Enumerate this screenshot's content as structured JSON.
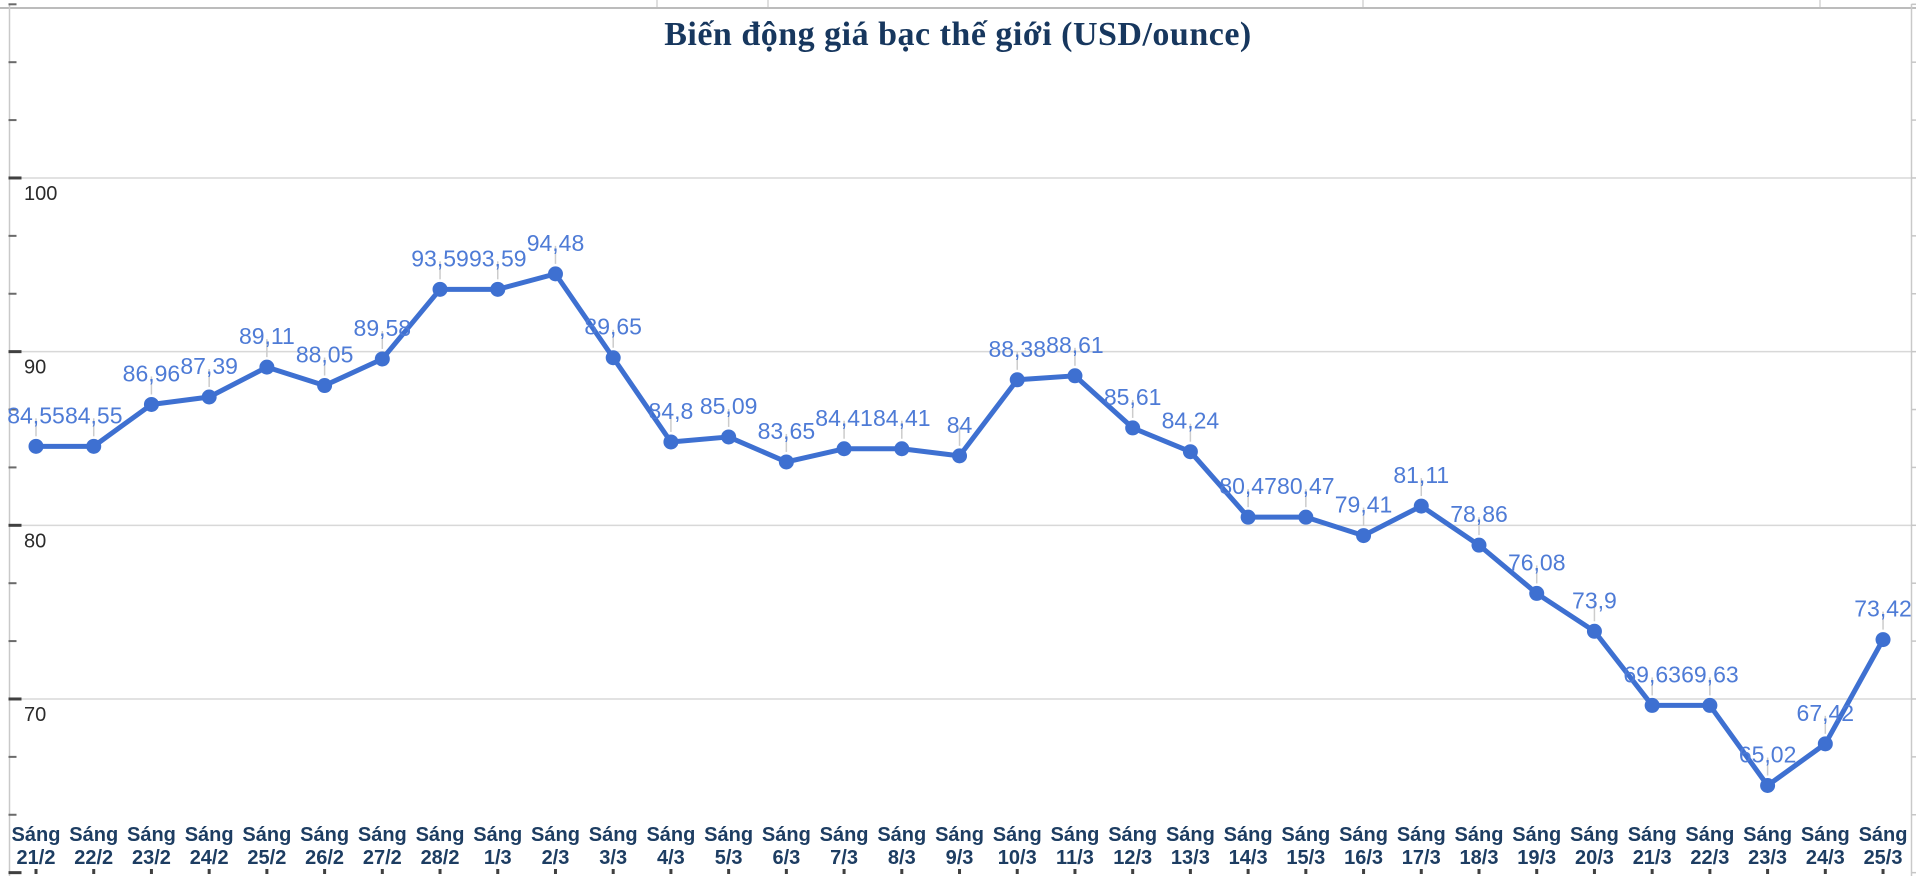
{
  "page": {
    "background": "#ffffff",
    "kind": "embedded spreadsheet line chart screenshot"
  },
  "chart_data": {
    "type": "line",
    "title": "Biến động giá bạc thế giới (USD/ounce)",
    "xlabel": "",
    "ylabel": "",
    "legend": "none",
    "grid": "horizontal-major-only",
    "decimal_separator": ",",
    "ylim": [
      60,
      110
    ],
    "y_ticks": [
      100,
      90,
      80,
      70
    ],
    "y_tick_labels": [
      "100",
      "90",
      "80",
      "70"
    ],
    "categories": [
      "Sáng 21/2",
      "Sáng 22/2",
      "Sáng 23/2",
      "Sáng 24/2",
      "Sáng 25/2",
      "Sáng 26/2",
      "Sáng 27/2",
      "Sáng 28/2",
      "Sáng 1/3",
      "Sáng 2/3",
      "Sáng 3/3",
      "Sáng 4/3",
      "Sáng 5/3",
      "Sáng 6/3",
      "Sáng 7/3",
      "Sáng 8/3",
      "Sáng 9/3",
      "Sáng 10/3",
      "Sáng 11/3",
      "Sáng 12/3",
      "Sáng 13/3",
      "Sáng 14/3",
      "Sáng 15/3",
      "Sáng 16/3",
      "Sáng 17/3",
      "Sáng 18/3",
      "Sáng 19/3",
      "Sáng 20/3",
      "Sáng 21/3",
      "Sáng 22/3",
      "Sáng 23/3",
      "Sáng 24/3",
      "Sáng 25/3"
    ],
    "values": [
      84.55,
      84.55,
      86.96,
      87.39,
      89.11,
      88.05,
      89.58,
      93.59,
      93.59,
      94.48,
      89.65,
      84.8,
      85.09,
      83.65,
      84.41,
      84.41,
      84,
      88.38,
      88.61,
      85.61,
      84.24,
      80.47,
      80.47,
      79.41,
      81.11,
      78.86,
      76.08,
      73.9,
      69.63,
      69.63,
      65.02,
      67.42,
      73.42
    ],
    "value_labels": [
      "84,55",
      "84,55",
      "86,96",
      "87,39",
      "89,11",
      "88,05",
      "89,58",
      "93,59",
      "93,59",
      "94,48",
      "89,65",
      "84,8",
      "85,09",
      "83,65",
      "84,41",
      "84,41",
      "84",
      "88,38",
      "88,61",
      "85,61",
      "84,24",
      "80,47",
      "80,47",
      "79,41",
      "81,11",
      "78,86",
      "76,08",
      "73,9",
      "69,63",
      "69,63",
      "65,02",
      "67,42",
      "73,42"
    ],
    "colors": {
      "line": "#3E70D1",
      "point": "#3E70D1",
      "data_label": "#4E7BD6",
      "category_label": "#1D3D62",
      "title": "#17375E",
      "gridline": "#D8D8D8",
      "axis_line": "#C9C9C9",
      "major_tick": "#404040",
      "minor_tick": "#6A6A6A",
      "y_tick_label": "#2B2B2B",
      "leader_line": "#CCCCCC",
      "bottom_dot": "#3F3F3F",
      "top_border": "#BCBCBC"
    }
  }
}
